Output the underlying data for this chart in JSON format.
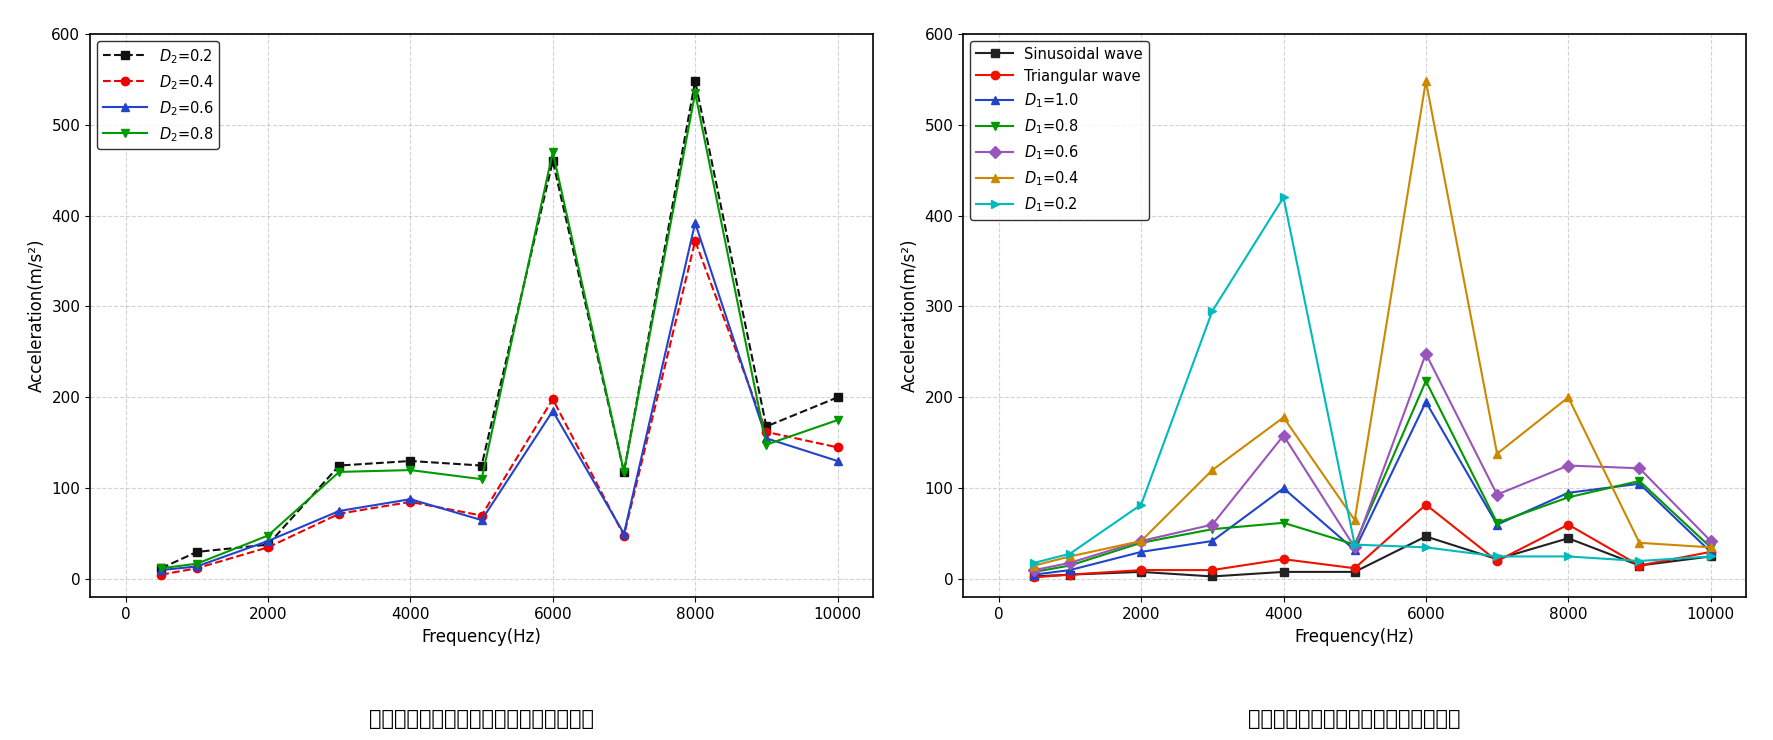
{
  "left_title": "不对称激励波形下的磁环振动加速度幅値",
  "right_title": "对称激励波形下的磁环振动加速度幅値",
  "xlabel": "Frequency(Hz)",
  "ylabel": "Acceleration(m/s²)",
  "xlim": [
    -500,
    10500
  ],
  "ylim": [
    -20,
    600
  ],
  "yticks": [
    0,
    100,
    200,
    300,
    400,
    500,
    600
  ],
  "xticks": [
    0,
    2000,
    4000,
    6000,
    8000,
    10000
  ],
  "left_series": {
    "D2_02": {
      "label": "$D_2$=0.2",
      "color": "#111111",
      "linestyle": "--",
      "marker": "s",
      "x": [
        500,
        1000,
        2000,
        3000,
        4000,
        5000,
        6000,
        7000,
        8000,
        9000,
        10000
      ],
      "y": [
        12,
        30,
        38,
        125,
        130,
        125,
        460,
        118,
        548,
        168,
        200
      ]
    },
    "D2_04": {
      "label": "$D_2$=0.4",
      "color": "#ee0000",
      "linestyle": "--",
      "marker": "o",
      "x": [
        500,
        1000,
        2000,
        3000,
        4000,
        5000,
        6000,
        7000,
        8000,
        9000,
        10000
      ],
      "y": [
        5,
        12,
        35,
        72,
        85,
        70,
        198,
        48,
        372,
        162,
        145
      ]
    },
    "D2_06": {
      "label": "$D_2$=0.6",
      "color": "#2244cc",
      "linestyle": "-",
      "marker": "^",
      "x": [
        500,
        1000,
        2000,
        3000,
        4000,
        5000,
        6000,
        7000,
        8000,
        9000,
        10000
      ],
      "y": [
        10,
        14,
        42,
        75,
        88,
        65,
        185,
        50,
        392,
        155,
        130
      ]
    },
    "D2_08": {
      "label": "$D_2$=0.8",
      "color": "#009900",
      "linestyle": "-",
      "marker": "v",
      "x": [
        500,
        1000,
        2000,
        3000,
        4000,
        5000,
        6000,
        7000,
        8000,
        9000,
        10000
      ],
      "y": [
        12,
        17,
        48,
        118,
        120,
        110,
        470,
        118,
        535,
        148,
        175
      ]
    }
  },
  "right_series": {
    "sinusoidal": {
      "label": "Sinusoidal wave",
      "color": "#222222",
      "linestyle": "-",
      "marker": "s",
      "x": [
        500,
        1000,
        2000,
        3000,
        4000,
        5000,
        6000,
        7000,
        8000,
        9000,
        10000
      ],
      "y": [
        3,
        5,
        8,
        3,
        8,
        8,
        47,
        22,
        45,
        15,
        25
      ]
    },
    "triangular": {
      "label": "Triangular wave",
      "color": "#ee1100",
      "linestyle": "-",
      "marker": "o",
      "x": [
        500,
        1000,
        2000,
        3000,
        4000,
        5000,
        6000,
        7000,
        8000,
        9000,
        10000
      ],
      "y": [
        2,
        5,
        10,
        10,
        22,
        12,
        82,
        20,
        60,
        15,
        30
      ]
    },
    "D1_10": {
      "label": "$D_1$=1.0",
      "color": "#2244cc",
      "linestyle": "-",
      "marker": "^",
      "x": [
        500,
        1000,
        2000,
        3000,
        4000,
        5000,
        6000,
        7000,
        8000,
        9000,
        10000
      ],
      "y": [
        5,
        10,
        30,
        42,
        100,
        32,
        195,
        60,
        95,
        105,
        30
      ]
    },
    "D1_08": {
      "label": "$D_1$=0.8",
      "color": "#009900",
      "linestyle": "-",
      "marker": "v",
      "x": [
        500,
        1000,
        2000,
        3000,
        4000,
        5000,
        6000,
        7000,
        8000,
        9000,
        10000
      ],
      "y": [
        8,
        15,
        40,
        55,
        62,
        38,
        218,
        62,
        90,
        108,
        35
      ]
    },
    "D1_06": {
      "label": "$D_1$=0.6",
      "color": "#9955bb",
      "linestyle": "-",
      "marker": "D",
      "x": [
        500,
        1000,
        2000,
        3000,
        4000,
        5000,
        6000,
        7000,
        8000,
        9000,
        10000
      ],
      "y": [
        10,
        18,
        42,
        60,
        158,
        35,
        248,
        93,
        125,
        122,
        42
      ]
    },
    "D1_04": {
      "label": "$D_1$=0.4",
      "color": "#cc8800",
      "linestyle": "-",
      "marker": "^",
      "x": [
        500,
        1000,
        2000,
        3000,
        4000,
        5000,
        6000,
        7000,
        8000,
        9000,
        10000
      ],
      "y": [
        15,
        25,
        42,
        120,
        178,
        65,
        548,
        138,
        200,
        40,
        35
      ]
    },
    "D1_02": {
      "label": "$D_1$=0.2",
      "color": "#00bbbb",
      "linestyle": "-",
      "marker": ">",
      "x": [
        500,
        1000,
        2000,
        3000,
        4000,
        5000,
        6000,
        7000,
        8000,
        9000,
        10000
      ],
      "y": [
        18,
        28,
        82,
        295,
        420,
        38,
        35,
        25,
        25,
        20,
        25
      ]
    }
  },
  "title_fontsize": 15,
  "label_fontsize": 12,
  "legend_fontsize": 10.5,
  "tick_fontsize": 11
}
